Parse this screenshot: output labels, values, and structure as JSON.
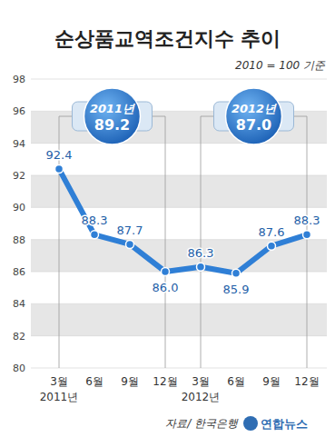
{
  "chart_data": {
    "type": "line",
    "title": "순상품교역조건지수 추이",
    "subtitle": "2010 = 100 기준",
    "categories": [
      "3월",
      "6월",
      "9월",
      "12월",
      "3월",
      "6월",
      "9월",
      "12월"
    ],
    "values": [
      92.4,
      88.3,
      87.7,
      86.0,
      86.3,
      85.9,
      87.6,
      88.3
    ],
    "value_labels": [
      "92.4",
      "88.3",
      "87.7",
      "86.0",
      "86.3",
      "85.9",
      "87.6",
      "88.3"
    ],
    "x_groups": [
      {
        "label": "2011년",
        "start": 0,
        "end": 3,
        "average_label": "89.2"
      },
      {
        "label": "2012년",
        "start": 4,
        "end": 7,
        "average_label": "87.0"
      }
    ],
    "ylim": [
      80,
      98
    ],
    "yticks": [
      80,
      82,
      84,
      86,
      88,
      90,
      92,
      94,
      96,
      98
    ],
    "grid": true,
    "data_labels": true,
    "marker": "circle",
    "color": "#2f7fd6",
    "source": "자료/ 한국은행",
    "publisher": "연합뉴스"
  }
}
